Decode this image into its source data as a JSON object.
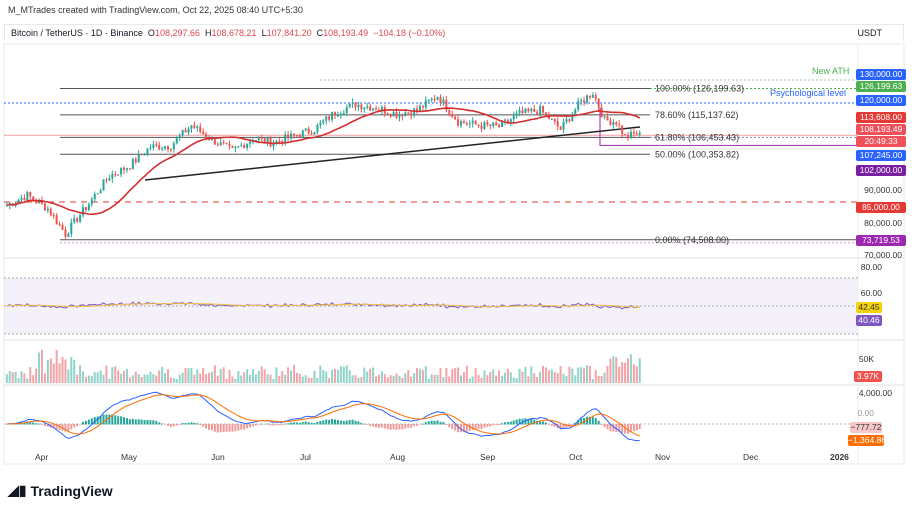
{
  "header": {
    "credit": "M_MTrades created with TradingView.com, Oct 22, 2025 08:40 UTC+5:30",
    "symbol": "Bitcoin / TetherUS · 1D · Binance",
    "o_label": "O",
    "o": "108,297.66",
    "h_label": "H",
    "h": "108,678.21",
    "l_label": "L",
    "l": "107,841.20",
    "c_label": "C",
    "c": "108,193.49",
    "change": "−104.18 (−0.10%)",
    "currency": "USDT"
  },
  "annotations": {
    "new_ath": "New ATH",
    "psych": "Psychological level",
    "fib": [
      "100.00% (126,199.63)",
      "78.60% (115,137.62)",
      "61.80% (106,453.43)",
      "50.00% (100,353.82)",
      "0.00% (74,508.00)"
    ]
  },
  "price_tags": [
    {
      "text": "130,000.00",
      "color": "#2962ff"
    },
    {
      "text": "126,199.63",
      "color": "#4caf50"
    },
    {
      "text": "120,000.00",
      "color": "#2962ff"
    },
    {
      "text": "113,608.00",
      "color": "#e53935"
    },
    {
      "text": "108,193.49",
      "color": "#f0505a"
    },
    {
      "text": "20:49:33",
      "color": "#f0505a"
    },
    {
      "text": "107,245.00",
      "color": "#2962ff"
    },
    {
      "text": "102,000.00",
      "color": "#7b1fa2"
    },
    {
      "text": "85,000.00",
      "color": "#e53935"
    },
    {
      "text": "73,719.53",
      "color": "#9c27b0"
    }
  ],
  "price_axis": [
    "90,000.00",
    "80,000.00",
    "70,000.00"
  ],
  "rsi": {
    "axis": [
      "80.00",
      "60.00"
    ],
    "tags": [
      {
        "text": "42.45",
        "color": "#f5d20a"
      },
      {
        "text": "40.46",
        "color": "#7e57c2"
      }
    ]
  },
  "volume": {
    "axis": "50K",
    "tag": "3.97K",
    "tag_color": "#ef5350"
  },
  "macd": {
    "axis": [
      "4,000.00",
      "0.00"
    ],
    "tags": [
      {
        "text": "−777.72",
        "color": "#f8c8c8"
      },
      {
        "text": "−1,364.86",
        "color": "#ff6d00"
      }
    ]
  },
  "time_axis": [
    "Apr",
    "May",
    "Jun",
    "Jul",
    "Aug",
    "Sep",
    "Oct",
    "Nov",
    "Dec",
    "2026"
  ],
  "logo": "TradingView",
  "chart_data": {
    "type": "candlestick",
    "title": "Bitcoin / TetherUS · 1D · Binance",
    "scale": "log",
    "ylim": [
      70000,
      130000
    ],
    "dates": [
      "2025-03-20",
      "2025-03-27",
      "2025-04-03",
      "2025-04-09",
      "2025-04-17",
      "2025-04-24",
      "2025-05-01",
      "2025-05-08",
      "2025-05-15",
      "2025-05-22",
      "2025-05-29",
      "2025-06-05",
      "2025-06-12",
      "2025-06-19",
      "2025-06-26",
      "2025-07-03",
      "2025-07-10",
      "2025-07-17",
      "2025-07-24",
      "2025-07-31",
      "2025-08-07",
      "2025-08-14",
      "2025-08-21",
      "2025-08-28",
      "2025-09-04",
      "2025-09-11",
      "2025-09-18",
      "2025-09-25",
      "2025-10-02",
      "2025-10-06",
      "2025-10-10",
      "2025-10-14",
      "2025-10-17",
      "2025-10-22"
    ],
    "close": [
      84000,
      87000,
      83000,
      76000,
      84500,
      93000,
      96500,
      103000,
      103500,
      111000,
      105500,
      101500,
      106000,
      104500,
      107000,
      109500,
      116000,
      119500,
      118000,
      115500,
      117000,
      123000,
      112500,
      111000,
      110500,
      115500,
      117000,
      109500,
      120500,
      124500,
      113000,
      112500,
      106500,
      108193
    ],
    "levels": {
      "resistance_130k": 130000,
      "ath": 126199.63,
      "psychological": 120000,
      "fib_786": 115137.62,
      "fib_618": 106453.43,
      "fib_50": 100353.82,
      "support_107k": 107245,
      "support_102k": 102000,
      "support_85k": 85000,
      "fib_0": 74508,
      "low_line": 73719.53
    }
  }
}
